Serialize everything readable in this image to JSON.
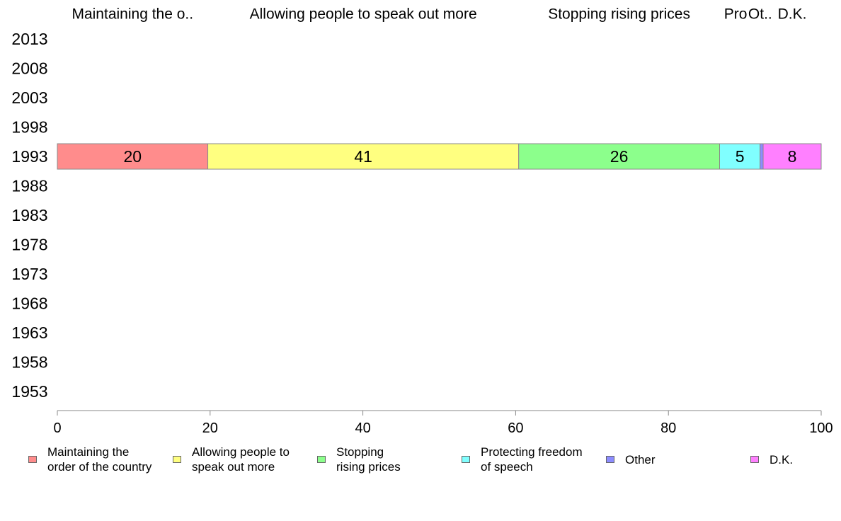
{
  "chart_data": {
    "type": "bar",
    "orientation": "horizontal",
    "stacked": true,
    "categories": [
      "2013",
      "2008",
      "2003",
      "1998",
      "1993",
      "1988",
      "1983",
      "1978",
      "1973",
      "1968",
      "1963",
      "1958",
      "1953"
    ],
    "xlim": [
      0,
      100
    ],
    "x_ticks": [
      "0",
      "20",
      "40",
      "60",
      "80",
      "100"
    ],
    "grid": false,
    "legend_position": "bottom",
    "top_labels": [
      "Maintaining the o..",
      "Allowing people to speak out more",
      "Stopping rising prices",
      "Pro",
      "Ot..",
      "D.K."
    ],
    "series": [
      {
        "name": "Maintaining the\norder of the country",
        "color": "#ff8c8c",
        "values": [
          null,
          null,
          null,
          null,
          19.7,
          null,
          null,
          null,
          null,
          null,
          null,
          null,
          null
        ],
        "label": "20"
      },
      {
        "name": "Allowing people to\nspeak out more",
        "color": "#ffff80",
        "values": [
          null,
          null,
          null,
          null,
          40.7,
          null,
          null,
          null,
          null,
          null,
          null,
          null,
          null
        ],
        "label": "41"
      },
      {
        "name": "Stopping\nrising prices",
        "color": "#8cff8c",
        "values": [
          null,
          null,
          null,
          null,
          26.3,
          null,
          null,
          null,
          null,
          null,
          null,
          null,
          null
        ],
        "label": "26"
      },
      {
        "name": "Protecting freedom\nof speech",
        "color": "#80ffff",
        "values": [
          null,
          null,
          null,
          null,
          5.3,
          null,
          null,
          null,
          null,
          null,
          null,
          null,
          null
        ],
        "label": "5"
      },
      {
        "name": "Other",
        "color": "#8c8cff",
        "values": [
          null,
          null,
          null,
          null,
          0.4,
          null,
          null,
          null,
          null,
          null,
          null,
          null,
          null
        ],
        "label": ""
      },
      {
        "name": "D.K.",
        "color": "#ff80ff",
        "values": [
          null,
          null,
          null,
          null,
          7.6,
          null,
          null,
          null,
          null,
          null,
          null,
          null,
          null
        ],
        "label": "8"
      }
    ]
  }
}
